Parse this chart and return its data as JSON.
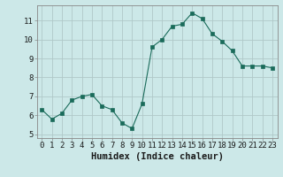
{
  "x": [
    0,
    1,
    2,
    3,
    4,
    5,
    6,
    7,
    8,
    9,
    10,
    11,
    12,
    13,
    14,
    15,
    16,
    17,
    18,
    19,
    20,
    21,
    22,
    23
  ],
  "y": [
    6.3,
    5.8,
    6.1,
    6.8,
    7.0,
    7.1,
    6.5,
    6.3,
    5.6,
    5.3,
    6.6,
    9.6,
    10.0,
    10.7,
    10.8,
    11.4,
    11.1,
    10.3,
    9.9,
    9.4,
    8.6,
    8.6,
    8.6,
    8.5
  ],
  "line_color": "#1a6b5a",
  "marker": "s",
  "marker_size": 2.5,
  "bg_color": "#cce8e8",
  "grid_color": "#b0c8c8",
  "xlabel": "Humidex (Indice chaleur)",
  "xlim": [
    -0.5,
    23.5
  ],
  "ylim": [
    4.8,
    11.8
  ],
  "yticks": [
    5,
    6,
    7,
    8,
    9,
    10,
    11
  ],
  "xticks": [
    0,
    1,
    2,
    3,
    4,
    5,
    6,
    7,
    8,
    9,
    10,
    11,
    12,
    13,
    14,
    15,
    16,
    17,
    18,
    19,
    20,
    21,
    22,
    23
  ],
  "font_color": "#1a1a1a",
  "tick_fontsize": 6.5,
  "label_fontsize": 7.5
}
